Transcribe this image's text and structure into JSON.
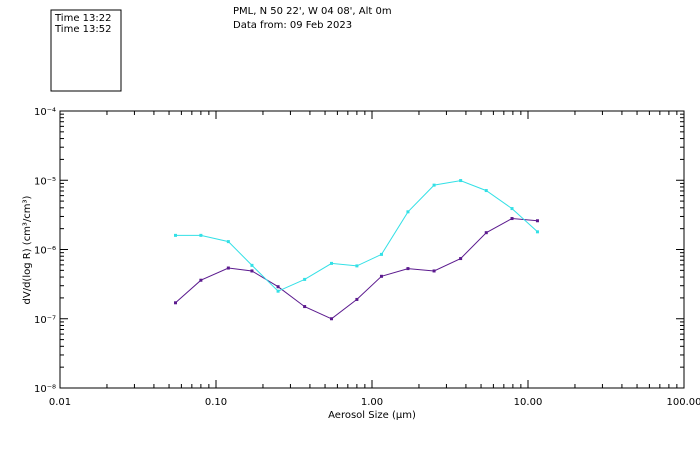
{
  "chart_data": {
    "type": "line",
    "title_lines": [
      "PML, N 50 22', W 04 08', Alt 0m",
      "Data from: 09 Feb 2023"
    ],
    "xlabel": "Aerosol Size (µm)",
    "ylabel": "dV/d(log R) (cm³/cm³)",
    "x_scale": "log",
    "y_scale": "log",
    "xlim": [
      0.01,
      100
    ],
    "ylim": [
      1e-08,
      0.0001
    ],
    "x_ticks": [
      {
        "value": 0.01,
        "label": "0.01"
      },
      {
        "value": 0.1,
        "label": "0.10"
      },
      {
        "value": 1,
        "label": "1.00"
      },
      {
        "value": 10,
        "label": "10.00"
      },
      {
        "value": 100,
        "label": "100.00"
      }
    ],
    "y_ticks": [
      {
        "value": 1e-08,
        "label": "10⁻⁸"
      },
      {
        "value": 1e-07,
        "label": "10⁻⁷"
      },
      {
        "value": 1e-06,
        "label": "10⁻⁶"
      },
      {
        "value": 1e-05,
        "label": "10⁻⁵"
      },
      {
        "value": 0.0001,
        "label": "10⁻⁴"
      }
    ],
    "series": [
      {
        "name": "Time 13:22",
        "color": "#5b1a8e",
        "x": [
          0.055,
          0.08,
          0.12,
          0.17,
          0.25,
          0.37,
          0.55,
          0.8,
          1.15,
          1.7,
          2.5,
          3.7,
          5.4,
          7.9,
          11.5
        ],
        "y": [
          1.7e-07,
          3.6e-07,
          5.4e-07,
          4.9e-07,
          2.9e-07,
          1.5e-07,
          1e-07,
          1.9e-07,
          4.1e-07,
          5.3e-07,
          4.9e-07,
          7.4e-07,
          1.75e-06,
          2.8e-06,
          2.6e-06
        ]
      },
      {
        "name": "Time 13:52",
        "color": "#33e0e6",
        "x": [
          0.055,
          0.08,
          0.12,
          0.17,
          0.25,
          0.37,
          0.55,
          0.8,
          1.15,
          1.7,
          2.5,
          3.7,
          5.4,
          7.9,
          11.5
        ],
        "y": [
          1.6e-06,
          1.6e-06,
          1.3e-06,
          5.9e-07,
          2.5e-07,
          3.7e-07,
          6.3e-07,
          5.8e-07,
          8.5e-07,
          3.5e-06,
          8.5e-06,
          9.9e-06,
          7.1e-06,
          3.9e-06,
          1.8e-06
        ]
      }
    ]
  }
}
